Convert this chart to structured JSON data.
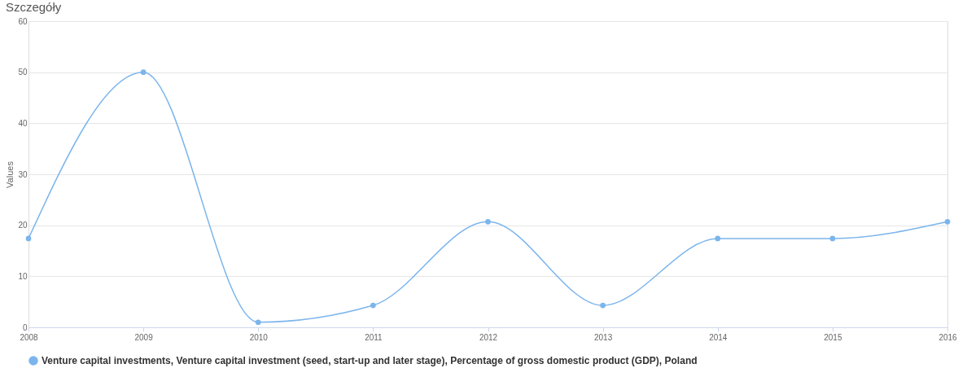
{
  "chart_data": {
    "type": "line",
    "title": "Szczegóły",
    "ylabel": "Values",
    "x": [
      2008,
      2009,
      2010,
      2011,
      2012,
      2013,
      2014,
      2015,
      2016
    ],
    "series": [
      {
        "name": "Venture capital investments, Venture capital investment (seed, start-up and later stage), Percentage of gross domestic product (GDP), Poland",
        "color": "#7cb5ec",
        "values": [
          17.4,
          50,
          1.0,
          4.3,
          20.7,
          4.3,
          17.4,
          17.4,
          20.7
        ]
      }
    ],
    "xlim": [
      2008,
      2016
    ],
    "xticks": [
      2008,
      2009,
      2010,
      2011,
      2012,
      2013,
      2014,
      2015,
      2016
    ],
    "ylim": [
      0,
      60
    ],
    "yticks": [
      0,
      10,
      20,
      30,
      40,
      50,
      60
    ],
    "grid": "y",
    "legend": "bottom",
    "marker": "circle",
    "line_style": "solid"
  }
}
